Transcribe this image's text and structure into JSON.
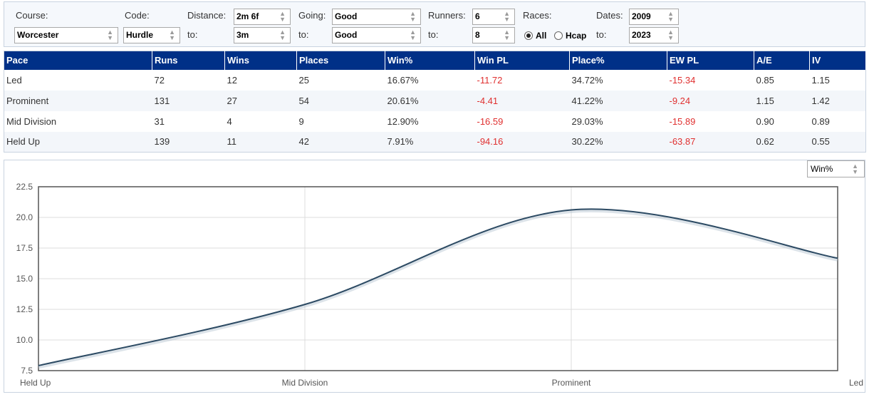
{
  "filters": {
    "course_label": "Course:",
    "course_value": "Worcester",
    "code_label": "Code:",
    "code_value": "Hurdle",
    "distance_label": "Distance:",
    "distance_from": "2m 6f",
    "distance_to_label": "to:",
    "distance_to": "3m",
    "going_label": "Going:",
    "going_from": "Good",
    "going_to_label": "to:",
    "going_to": "Good",
    "runners_label": "Runners:",
    "runners_from": "6",
    "runners_to_label": "to:",
    "runners_to": "8",
    "races_label": "Races:",
    "races_all": "All",
    "races_hcap": "Hcap",
    "races_selected": "All",
    "dates_label": "Dates:",
    "dates_from": "2009",
    "dates_to_label": "to:",
    "dates_to": "2023"
  },
  "table": {
    "columns": [
      "Pace",
      "Runs",
      "Wins",
      "Places",
      "Win%",
      "Win PL",
      "Place%",
      "EW PL",
      "A/E",
      "IV"
    ],
    "rows": [
      [
        "Led",
        "72",
        "12",
        "25",
        "16.67%",
        "-11.72",
        "34.72%",
        "-15.34",
        "0.85",
        "1.15"
      ],
      [
        "Prominent",
        "131",
        "27",
        "54",
        "20.61%",
        "-4.41",
        "41.22%",
        "-9.24",
        "1.15",
        "1.42"
      ],
      [
        "Mid Division",
        "31",
        "4",
        "9",
        "12.90%",
        "-16.59",
        "29.03%",
        "-15.89",
        "0.90",
        "0.89"
      ],
      [
        "Held Up",
        "139",
        "11",
        "42",
        "7.91%",
        "-94.16",
        "30.22%",
        "-63.87",
        "0.62",
        "0.55"
      ]
    ],
    "negative_color": "#e03030",
    "header_color": "#003087"
  },
  "chart_metric_select": "Win%",
  "chart_data": {
    "type": "line",
    "categories": [
      "Held Up",
      "Mid Division",
      "Prominent",
      "Led"
    ],
    "series": [
      {
        "values": [
          7.91,
          12.9,
          20.61,
          16.67
        ]
      }
    ],
    "ylim": [
      7.5,
      22.5
    ],
    "yticks": [
      "7.5",
      "10.0",
      "12.5",
      "15.0",
      "17.5",
      "20.0",
      "22.5"
    ],
    "grid": true,
    "line_color": "#2c4a63"
  }
}
